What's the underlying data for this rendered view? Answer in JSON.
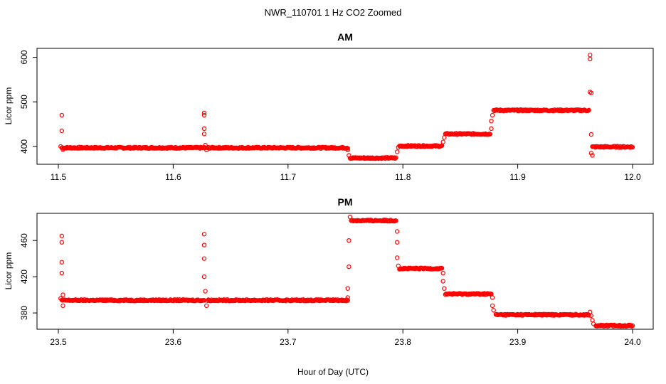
{
  "page": {
    "title": "NWR_110701  1 Hz CO2 Zoomed",
    "xlabel": "Hour of Day (UTC)",
    "point_color": "#ff0000"
  },
  "chart_data": [
    {
      "type": "scatter",
      "title": "AM",
      "xlabel": "Hour of Day (UTC)",
      "ylabel": "Licor ppm",
      "xlim": [
        11.5,
        12.0
      ],
      "ylim": [
        360,
        620
      ],
      "xticks": [
        "11.5",
        "11.6",
        "11.7",
        "11.8",
        "11.9",
        "12.0"
      ],
      "yticks": [
        "400",
        "500",
        "600"
      ],
      "segments": [
        {
          "x0": 11.503,
          "x1": 11.628,
          "y": 397
        },
        {
          "x0": 11.63,
          "x1": 11.752,
          "y": 397
        },
        {
          "x0": 11.754,
          "x1": 11.794,
          "y": 374
        },
        {
          "x0": 11.797,
          "x1": 11.834,
          "y": 401
        },
        {
          "x0": 11.837,
          "x1": 11.876,
          "y": 428
        },
        {
          "x0": 11.879,
          "x1": 11.962,
          "y": 481
        },
        {
          "x0": 11.965,
          "x1": 12.0,
          "y": 399
        }
      ],
      "spikes": [
        {
          "x": 11.502,
          "y": 400
        },
        {
          "x": 11.503,
          "y": 435
        },
        {
          "x": 11.503,
          "y": 470
        },
        {
          "x": 11.504,
          "y": 393
        },
        {
          "x": 11.627,
          "y": 475
        },
        {
          "x": 11.627,
          "y": 470
        },
        {
          "x": 11.627,
          "y": 440
        },
        {
          "x": 11.627,
          "y": 428
        },
        {
          "x": 11.628,
          "y": 403
        },
        {
          "x": 11.629,
          "y": 392
        },
        {
          "x": 11.752,
          "y": 392
        },
        {
          "x": 11.753,
          "y": 380
        },
        {
          "x": 11.795,
          "y": 388
        },
        {
          "x": 11.796,
          "y": 398
        },
        {
          "x": 11.835,
          "y": 410
        },
        {
          "x": 11.836,
          "y": 420
        },
        {
          "x": 11.877,
          "y": 440
        },
        {
          "x": 11.877,
          "y": 457
        },
        {
          "x": 11.878,
          "y": 470
        },
        {
          "x": 11.963,
          "y": 605
        },
        {
          "x": 11.963,
          "y": 596
        },
        {
          "x": 11.963,
          "y": 522
        },
        {
          "x": 11.964,
          "y": 520
        },
        {
          "x": 11.964,
          "y": 427
        },
        {
          "x": 11.964,
          "y": 385
        },
        {
          "x": 11.965,
          "y": 380
        }
      ]
    },
    {
      "type": "scatter",
      "title": "PM",
      "xlabel": "Hour of Day (UTC)",
      "ylabel": "Licor ppm",
      "xlim": [
        23.5,
        24.0
      ],
      "ylim": [
        362,
        490
      ],
      "xticks": [
        "23.5",
        "23.6",
        "23.7",
        "23.8",
        "23.9",
        "24.0"
      ],
      "yticks": [
        "380",
        "420",
        "460"
      ],
      "segments": [
        {
          "x0": 23.503,
          "x1": 23.627,
          "y": 394
        },
        {
          "x0": 23.63,
          "x1": 23.752,
          "y": 394
        },
        {
          "x0": 23.755,
          "x1": 23.794,
          "y": 482
        },
        {
          "x0": 23.797,
          "x1": 23.834,
          "y": 429
        },
        {
          "x0": 23.837,
          "x1": 23.877,
          "y": 401
        },
        {
          "x0": 23.881,
          "x1": 23.962,
          "y": 378
        },
        {
          "x0": 23.968,
          "x1": 24.0,
          "y": 366
        }
      ],
      "spikes": [
        {
          "x": 23.502,
          "y": 396
        },
        {
          "x": 23.503,
          "y": 465
        },
        {
          "x": 23.503,
          "y": 458
        },
        {
          "x": 23.503,
          "y": 436
        },
        {
          "x": 23.503,
          "y": 424
        },
        {
          "x": 23.504,
          "y": 400
        },
        {
          "x": 23.504,
          "y": 388
        },
        {
          "x": 23.627,
          "y": 467
        },
        {
          "x": 23.627,
          "y": 455
        },
        {
          "x": 23.627,
          "y": 440
        },
        {
          "x": 23.627,
          "y": 420
        },
        {
          "x": 23.628,
          "y": 404
        },
        {
          "x": 23.629,
          "y": 388
        },
        {
          "x": 23.752,
          "y": 397
        },
        {
          "x": 23.752,
          "y": 407
        },
        {
          "x": 23.753,
          "y": 431
        },
        {
          "x": 23.753,
          "y": 460
        },
        {
          "x": 23.754,
          "y": 486
        },
        {
          "x": 23.795,
          "y": 470
        },
        {
          "x": 23.795,
          "y": 458
        },
        {
          "x": 23.795,
          "y": 441
        },
        {
          "x": 23.796,
          "y": 432
        },
        {
          "x": 23.835,
          "y": 424
        },
        {
          "x": 23.835,
          "y": 415
        },
        {
          "x": 23.836,
          "y": 407
        },
        {
          "x": 23.878,
          "y": 397
        },
        {
          "x": 23.878,
          "y": 388
        },
        {
          "x": 23.879,
          "y": 383
        },
        {
          "x": 23.963,
          "y": 381
        },
        {
          "x": 23.964,
          "y": 377
        },
        {
          "x": 23.965,
          "y": 372
        },
        {
          "x": 23.966,
          "y": 368
        }
      ]
    }
  ]
}
